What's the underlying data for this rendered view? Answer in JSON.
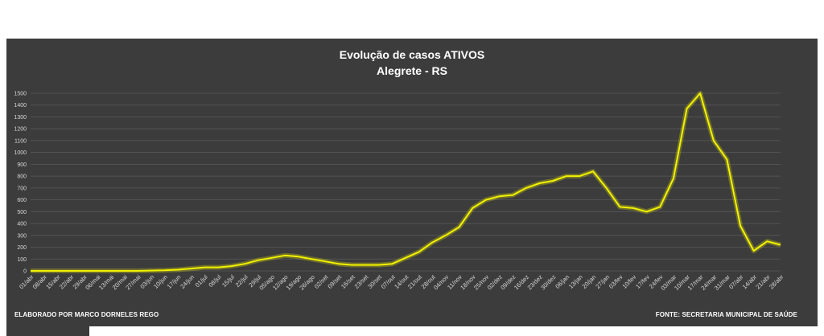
{
  "chart_data": {
    "type": "line",
    "title": "Evolução de casos ATIVOS",
    "subtitle": "Alegrete - RS",
    "ylim": [
      0,
      1500
    ],
    "yticks": [
      0,
      100,
      200,
      300,
      400,
      500,
      600,
      700,
      800,
      900,
      1000,
      1100,
      1200,
      1300,
      1400,
      1500
    ],
    "x_ticks": [
      "01/abr",
      "08/abr",
      "15/abr",
      "22/abr",
      "29/abr",
      "06/mai",
      "13/mai",
      "20/mai",
      "27/mai",
      "03/jun",
      "10/jun",
      "17/jun",
      "24/jun",
      "01/jul",
      "08/jul",
      "15/jul",
      "22/jul",
      "29/jul",
      "05/ago",
      "12/ago",
      "19/ago",
      "26/ago",
      "02/set",
      "09/set",
      "16/set",
      "23/set",
      "30/set",
      "07/out",
      "14/out",
      "21/out",
      "28/out",
      "04/nov",
      "11/nov",
      "18/nov",
      "25/nov",
      "02/dez",
      "09/dez",
      "16/dez",
      "23/dez",
      "30/dez",
      "06/jan",
      "13/jan",
      "20/jan",
      "27/jan",
      "03/fev",
      "10/fev",
      "17/fev",
      "24/fev",
      "03/mar",
      "10/mar",
      "17/mar",
      "24/mar",
      "31/mar",
      "07/abr",
      "14/abr",
      "21/abr",
      "28/abr"
    ],
    "grid": true,
    "line_color": "#f2f200",
    "series": [
      {
        "values": [
          0,
          0,
          0,
          0,
          0,
          0,
          0,
          0,
          0,
          3,
          5,
          10,
          20,
          30,
          30,
          40,
          60,
          90,
          110,
          130,
          120,
          100,
          80,
          60,
          50,
          50,
          50,
          60,
          110,
          160,
          240,
          300,
          370,
          530,
          600,
          630,
          640,
          700,
          740,
          760,
          800,
          800,
          840,
          700,
          540,
          530,
          500,
          540,
          780,
          1370,
          1500,
          1100,
          940,
          380,
          170,
          250,
          220
        ]
      }
    ]
  },
  "footer": {
    "credit": "ELABORADO POR MARCO DORNELES REGO",
    "source": "FONTE: SECRETARIA MUNICIPAL DE SAÚDE"
  }
}
